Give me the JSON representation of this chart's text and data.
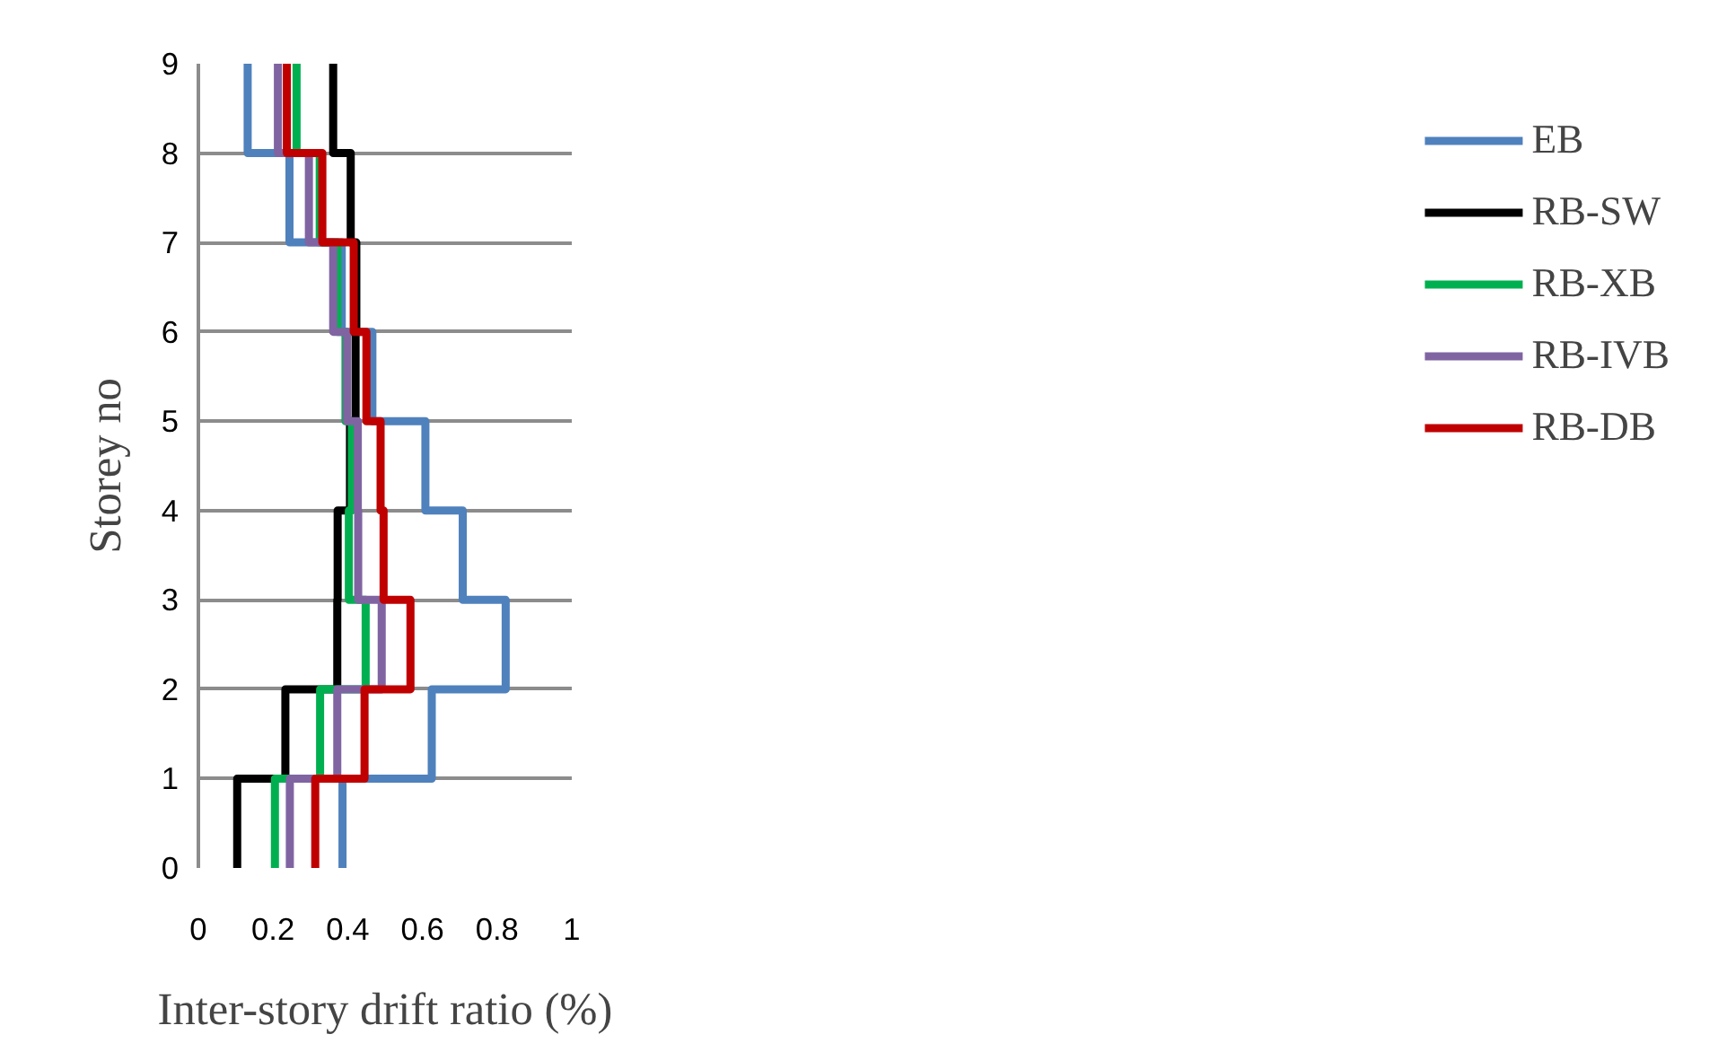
{
  "chart_data": {
    "type": "line",
    "xlabel": "Inter-story drift ratio (%)",
    "ylabel": "Storey no",
    "xlim": [
      0,
      1
    ],
    "ylim": [
      0,
      9
    ],
    "xticks": [
      0,
      0.2,
      0.4,
      0.6,
      0.8,
      1
    ],
    "yticks": [
      0,
      1,
      2,
      3,
      4,
      5,
      6,
      7,
      8,
      9
    ],
    "grid": "y",
    "legend": "right",
    "line_style": "solid",
    "marker": "none",
    "series": [
      {
        "name": "EB",
        "color": "#4f81bd",
        "x": [
          0.386,
          0.386,
          0.625,
          0.625,
          0.823,
          0.823,
          0.708,
          0.708,
          0.608,
          0.608,
          0.466,
          0.466,
          0.384,
          0.384,
          0.244,
          0.244,
          0.132,
          0.132
        ],
        "values": [
          0,
          1,
          1,
          2,
          2,
          3,
          3,
          4,
          4,
          5,
          5,
          6,
          6,
          7,
          7,
          8,
          8,
          9
        ]
      },
      {
        "name": "RB-SW",
        "color": "#000000",
        "x": [
          0.104,
          0.104,
          0.233,
          0.233,
          0.372,
          0.372,
          0.373,
          0.373,
          0.406,
          0.406,
          0.421,
          0.421,
          0.423,
          0.423,
          0.408,
          0.408,
          0.361,
          0.361
        ],
        "values": [
          0,
          1,
          1,
          2,
          2,
          3,
          3,
          4,
          4,
          5,
          5,
          6,
          6,
          7,
          7,
          8,
          8,
          9
        ]
      },
      {
        "name": "RB-XB",
        "color": "#00b050",
        "x": [
          0.205,
          0.205,
          0.326,
          0.326,
          0.448,
          0.448,
          0.403,
          0.403,
          0.411,
          0.411,
          0.394,
          0.394,
          0.372,
          0.372,
          0.325,
          0.325,
          0.263,
          0.263
        ],
        "values": [
          0,
          1,
          1,
          2,
          2,
          3,
          3,
          4,
          4,
          5,
          5,
          6,
          6,
          7,
          7,
          8,
          8,
          9
        ]
      },
      {
        "name": "RB-IVB",
        "color": "#8064a2",
        "x": [
          0.245,
          0.245,
          0.372,
          0.372,
          0.491,
          0.491,
          0.428,
          0.428,
          0.427,
          0.427,
          0.398,
          0.398,
          0.361,
          0.361,
          0.296,
          0.296,
          0.213,
          0.213
        ],
        "values": [
          0,
          1,
          1,
          2,
          2,
          3,
          3,
          4,
          4,
          5,
          5,
          6,
          6,
          7,
          7,
          8,
          8,
          9
        ]
      },
      {
        "name": "RB-DB",
        "color": "#c00000",
        "x": [
          0.313,
          0.313,
          0.445,
          0.445,
          0.568,
          0.568,
          0.496,
          0.496,
          0.488,
          0.488,
          0.45,
          0.45,
          0.416,
          0.416,
          0.332,
          0.332,
          0.237,
          0.237
        ],
        "values": [
          0,
          1,
          1,
          2,
          2,
          3,
          3,
          4,
          4,
          5,
          5,
          6,
          6,
          7,
          7,
          8,
          8,
          9
        ]
      }
    ]
  }
}
